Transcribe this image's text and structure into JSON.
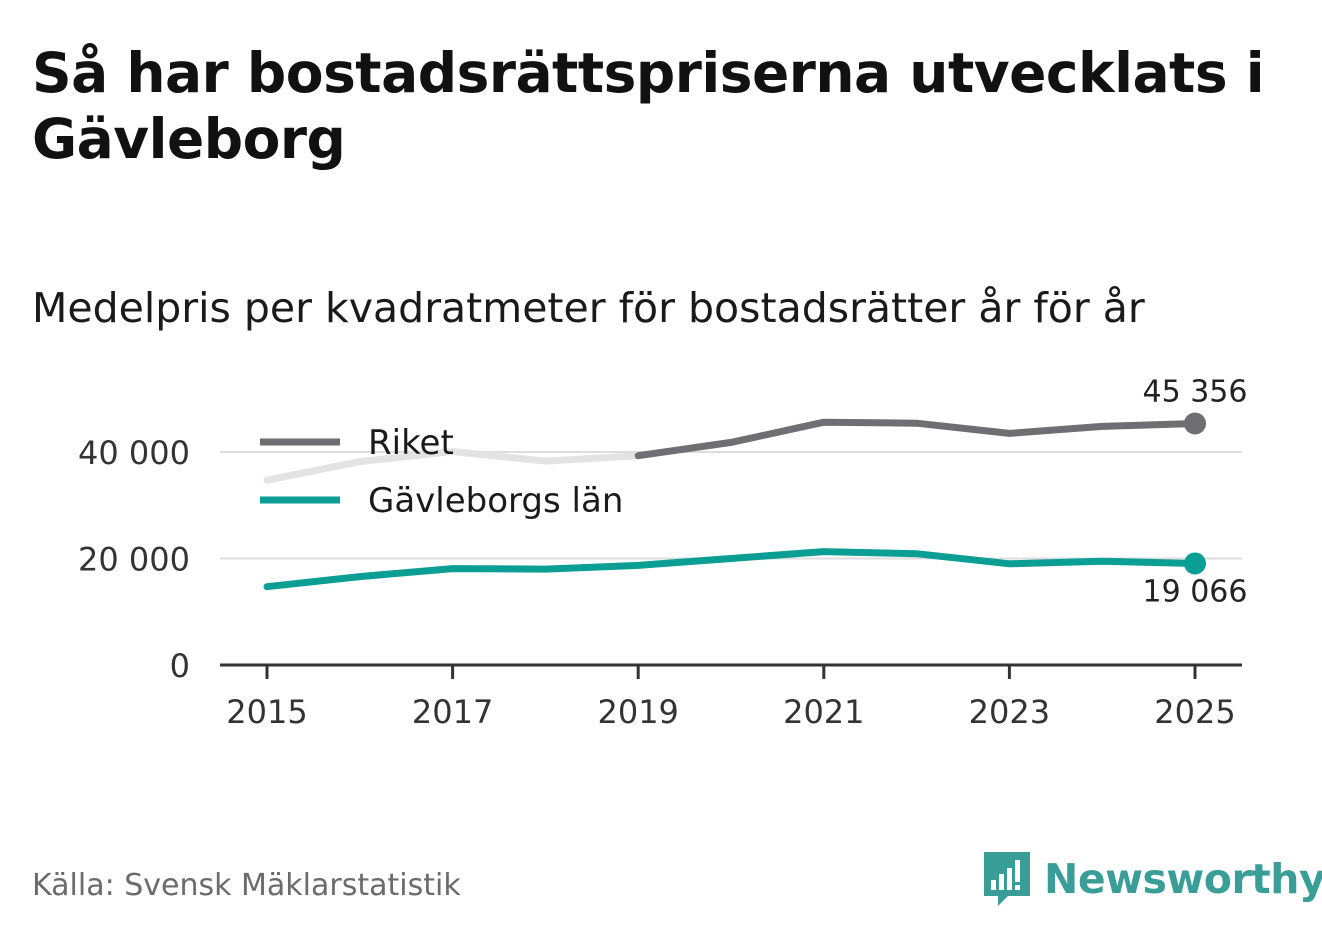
{
  "title": "Så har bostadsrättspriserna utvecklats i Gävleborg",
  "subtitle": "Medelpris per kvadratmeter för bostadsrätter år för år",
  "source": "Källa: Svensk Mäklarstatistik",
  "brand": {
    "name": "Newsworthy",
    "color": "#3a9e98"
  },
  "chart_data": {
    "type": "line",
    "title": "Så har bostadsrättspriserna utvecklats i Gävleborg",
    "subtitle": "Medelpris per kvadratmeter för bostadsrätter år för år",
    "xlabel": "",
    "ylabel": "",
    "x": [
      2015,
      2016,
      2017,
      2018,
      2019,
      2020,
      2021,
      2022,
      2023,
      2024,
      2025
    ],
    "xticks": [
      "2015",
      "2017",
      "2019",
      "2021",
      "2023",
      "2025"
    ],
    "xlim": [
      2015,
      2025
    ],
    "yticks": [
      0,
      20000,
      40000
    ],
    "ytick_labels": [
      "0",
      "20 000",
      "40 000"
    ],
    "ylim": [
      0,
      45356
    ],
    "grid": true,
    "legend": "top-left",
    "series": [
      {
        "name": "Riket",
        "color": "#6e6e73",
        "faded_color": "#e3e3e3",
        "faded_until": 2019,
        "values": [
          34700,
          38200,
          40100,
          38300,
          39300,
          41800,
          45600,
          45400,
          43500,
          44800,
          45356
        ],
        "end_label": "45 356"
      },
      {
        "name": "Gävleborgs län",
        "color": "#0a9e94",
        "values": [
          14700,
          16600,
          18100,
          18000,
          18700,
          20000,
          21300,
          20900,
          19000,
          19500,
          19066
        ],
        "end_label": "19 066"
      }
    ]
  }
}
